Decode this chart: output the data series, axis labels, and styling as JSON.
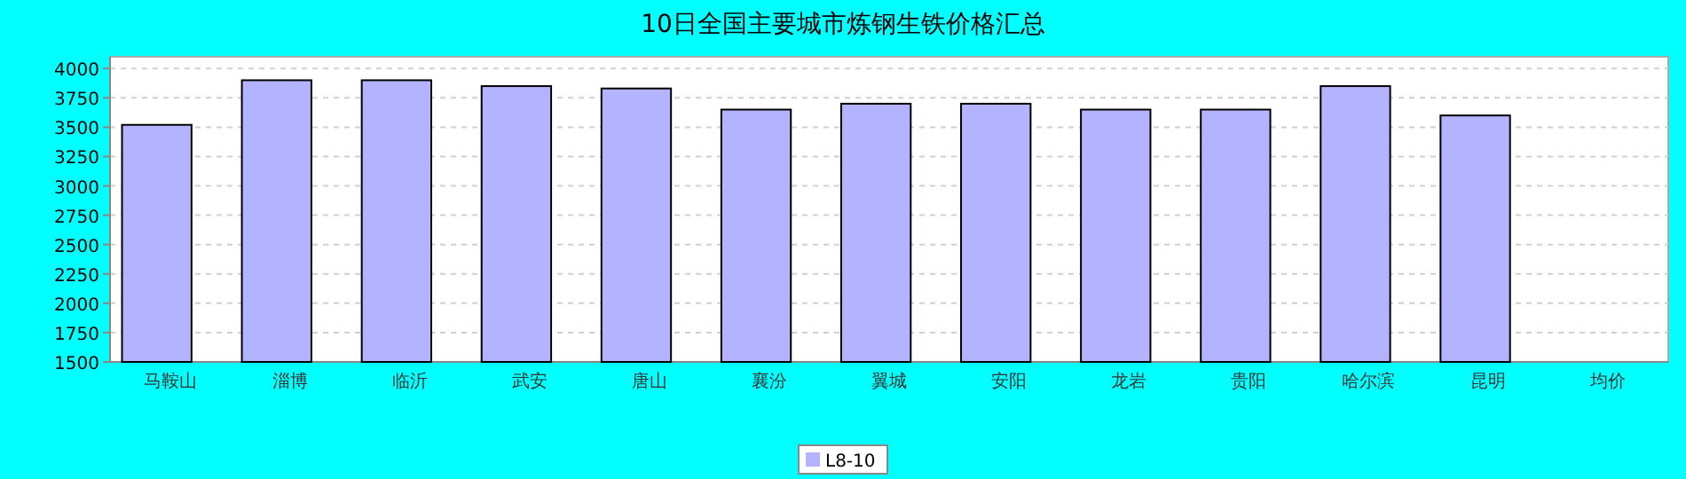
{
  "chart_data": {
    "type": "bar",
    "title": "10日全国主要城市炼钢生铁价格汇总",
    "categories": [
      "马鞍山",
      "淄博",
      "临沂",
      "武安",
      "唐山",
      "襄汾",
      "翼城",
      "安阳",
      "龙岩",
      "贵阳",
      "哈尔滨",
      "昆明",
      "均价"
    ],
    "series": [
      {
        "name": "L8-10",
        "color": "#b3b3ff",
        "values": [
          3520,
          3900,
          3900,
          3850,
          3830,
          3650,
          3700,
          3700,
          3650,
          3650,
          3850,
          3600,
          null
        ]
      }
    ],
    "ylim": [
      1500,
      4100
    ],
    "yticks": [
      1500,
      1750,
      2000,
      2250,
      2500,
      2750,
      3000,
      3250,
      3500,
      3750,
      4000
    ],
    "grid": "y",
    "legend": "bottom"
  }
}
